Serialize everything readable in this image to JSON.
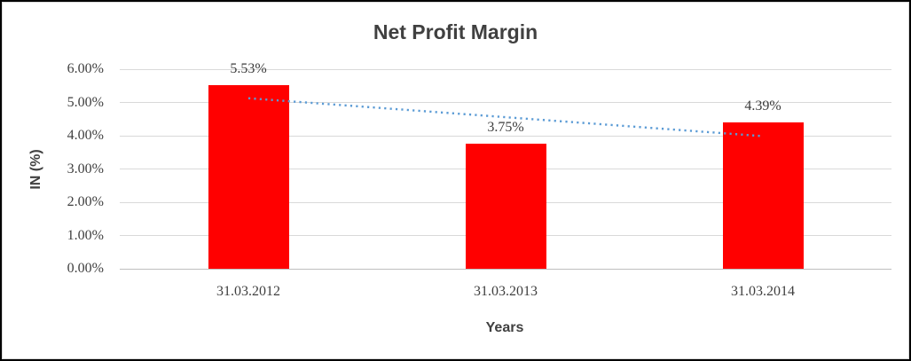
{
  "chart_data": {
    "type": "bar",
    "title": "Net Profit Margin",
    "xlabel": "Years",
    "ylabel": "IN (%)",
    "categories": [
      "31.03.2012",
      "31.03.2013",
      "31.03.2014"
    ],
    "values": [
      5.53,
      3.75,
      4.39
    ],
    "data_labels": [
      "5.53%",
      "3.75%",
      "4.39%"
    ],
    "ylim": [
      0,
      6
    ],
    "ytick_step": 1,
    "ytick_labels": [
      "0.00%",
      "1.00%",
      "2.00%",
      "3.00%",
      "4.00%",
      "5.00%",
      "6.00%"
    ],
    "grid": true,
    "legend": "none",
    "bar_color": "#ff0000",
    "trendline": {
      "type": "linear",
      "style": "dotted",
      "color": "#5b9bd5"
    },
    "colors": {
      "title_text": "#404040",
      "tick_text": "#3f3f3f",
      "gridline": "#d9d9d9",
      "axis_line": "#bfbfbf",
      "background": "#ffffff",
      "outer_border": "#000000",
      "chart_border": "#d9d9d9"
    }
  }
}
